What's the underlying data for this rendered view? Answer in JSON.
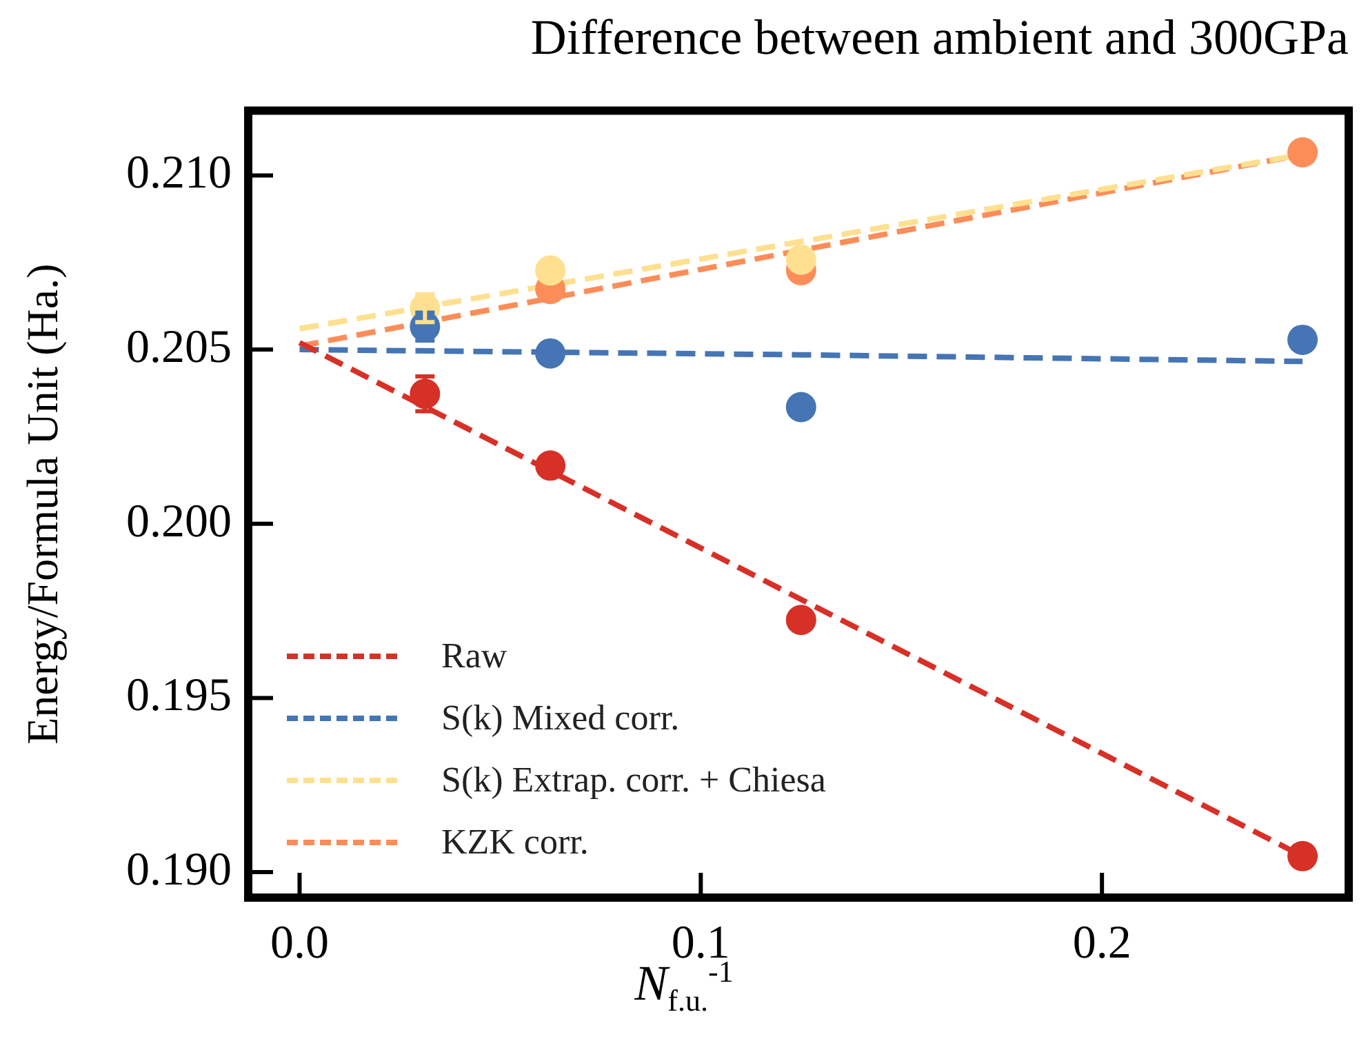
{
  "chart_data": {
    "type": "scatter",
    "title": "Difference between ambient and 300GPa",
    "xlabel": "N$_{f.u.}$$^{-1}$",
    "ylabel": "Energy/Formula Unit (Ha.)",
    "xlim": [
      -0.0128,
      0.2615
    ],
    "ylim": [
      0.18927,
      0.21186
    ],
    "xticks": [
      {
        "value": 0,
        "label": "0.0"
      },
      {
        "value": 0.1,
        "label": "0.1"
      },
      {
        "value": 0.2,
        "label": "0.2"
      }
    ],
    "yticks": [
      {
        "value": 0.19,
        "label": "0.190"
      },
      {
        "value": 0.195,
        "label": "0.195"
      },
      {
        "value": 0.2,
        "label": "0.200"
      },
      {
        "value": 0.205,
        "label": "0.205"
      },
      {
        "value": 0.21,
        "label": "0.210"
      }
    ],
    "grid": false,
    "legend": "bottom left",
    "marker": "circle",
    "series": [
      {
        "name": "Raw",
        "type": "line",
        "line_style": "dashed",
        "marker": "none",
        "color": "#d73027",
        "x": [
          0,
          0.25
        ],
        "values": [
          0.2052,
          0.19046
        ]
      },
      {
        "name": "S(k) Mixed corr.",
        "type": "line",
        "line_style": "dashed",
        "marker": "none",
        "color": "#4575b4",
        "x": [
          0,
          0.125,
          0.25
        ],
        "values": [
          0.205,
          0.20485,
          0.20466
        ]
      },
      {
        "name": "S(k) Extrap. corr. + Chiesa",
        "type": "line",
        "line_style": "dashed",
        "marker": "none",
        "color": "#fee090",
        "x": [
          0,
          0.25
        ],
        "values": [
          0.2056,
          0.2106
        ]
      },
      {
        "name": "KZK corr.",
        "type": "line",
        "line_style": "dashed",
        "marker": "none",
        "color": "#fc8d59",
        "x": [
          0,
          0.25
        ],
        "values": [
          0.2051,
          0.2106
        ]
      },
      {
        "color": "#d73027",
        "x": [
          0.03125,
          0.0625,
          0.125,
          0.25
        ],
        "values": [
          0.20373,
          0.20167,
          0.19724,
          0.19046
        ],
        "errors": [
          0.0005,
          null,
          null,
          null
        ]
      },
      {
        "color": "#4575b4",
        "x": [
          0.03125,
          0.0625,
          0.125,
          0.25
        ],
        "values": [
          0.20566,
          0.20489,
          0.20335,
          0.20528
        ],
        "errors": [
          0.0004,
          null,
          null,
          null
        ]
      },
      {
        "color": "#fee090",
        "x": [
          0.03125,
          0.0625,
          0.125
        ],
        "values": [
          0.20619,
          0.20727,
          0.20758
        ],
        "errors": [
          0.0004,
          null,
          null
        ]
      },
      {
        "color": "#fc8d59",
        "x": [
          0.0625,
          0.125,
          0.25
        ],
        "values": [
          0.20674,
          0.20728,
          0.21066
        ]
      }
    ]
  }
}
